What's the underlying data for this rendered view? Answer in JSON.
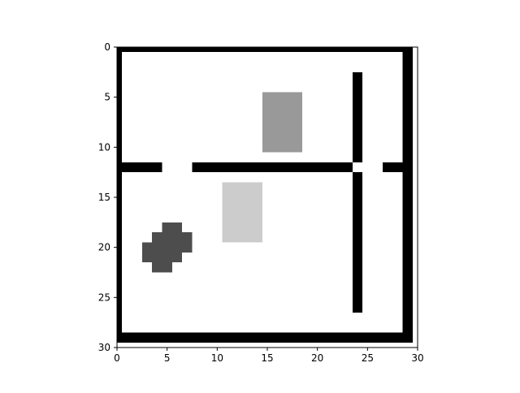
{
  "chart_data": {
    "type": "heatmap",
    "title": "",
    "xlabel": "",
    "ylabel": "",
    "xlim": [
      0,
      30
    ],
    "ylim": [
      30,
      0
    ],
    "x_ticks": [
      0,
      5,
      10,
      15,
      20,
      25,
      30
    ],
    "y_ticks": [
      0,
      5,
      10,
      15,
      20,
      25,
      30
    ],
    "grid_size": [
      30,
      30
    ],
    "colormap": "gray (0 = black, 1 = white)",
    "background_value": 1.0,
    "regions": [
      {
        "name": "top-wall",
        "value": 0.0,
        "x0": -0.5,
        "x1": 29.5,
        "y0": -0.5,
        "y1": 0.5
      },
      {
        "name": "bottom-wall",
        "value": 0.0,
        "x0": -0.5,
        "x1": 29.5,
        "y0": 28.5,
        "y1": 29.5
      },
      {
        "name": "left-wall",
        "value": 0.0,
        "x0": -0.5,
        "x1": 0.5,
        "y0": -0.5,
        "y1": 29.5
      },
      {
        "name": "right-wall",
        "value": 0.0,
        "x0": 28.5,
        "x1": 29.5,
        "y0": -0.5,
        "y1": 29.5
      },
      {
        "name": "horizontal-wall-a",
        "value": 0.0,
        "x0": 0.5,
        "x1": 4.5,
        "y0": 11.5,
        "y1": 12.5
      },
      {
        "name": "horizontal-wall-b",
        "value": 0.0,
        "x0": 7.5,
        "x1": 23.5,
        "y0": 11.5,
        "y1": 12.5
      },
      {
        "name": "horizontal-wall-c",
        "value": 0.0,
        "x0": 26.5,
        "x1": 28.5,
        "y0": 11.5,
        "y1": 12.5
      },
      {
        "name": "vertical-wall-upper",
        "value": 0.0,
        "x0": 23.5,
        "x1": 24.5,
        "y0": 2.5,
        "y1": 11.5
      },
      {
        "name": "vertical-wall-lower",
        "value": 0.0,
        "x0": 23.5,
        "x1": 24.5,
        "y0": 12.5,
        "y1": 26.5
      },
      {
        "name": "medium-gray-block",
        "value": 0.6,
        "x0": 14.5,
        "x1": 18.5,
        "y0": 4.5,
        "y1": 10.5
      },
      {
        "name": "light-gray-block",
        "value": 0.8,
        "x0": 10.5,
        "x1": 14.5,
        "y0": 13.5,
        "y1": 19.5
      },
      {
        "name": "dark-blob-1",
        "value": 0.3,
        "x0": 4.5,
        "x1": 6.5,
        "y0": 17.5,
        "y1": 18.5
      },
      {
        "name": "dark-blob-2",
        "value": 0.3,
        "x0": 3.5,
        "x1": 7.5,
        "y0": 18.5,
        "y1": 20.5
      },
      {
        "name": "dark-blob-3",
        "value": 0.3,
        "x0": 2.5,
        "x1": 6.5,
        "y0": 19.5,
        "y1": 21.5
      },
      {
        "name": "dark-blob-4",
        "value": 0.3,
        "x0": 3.5,
        "x1": 5.5,
        "y0": 21.5,
        "y1": 22.5
      }
    ]
  }
}
